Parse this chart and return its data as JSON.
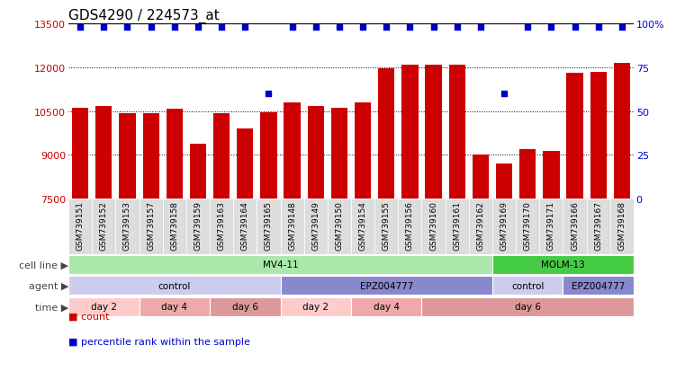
{
  "title": "GDS4290 / 224573_at",
  "samples": [
    "GSM739151",
    "GSM739152",
    "GSM739153",
    "GSM739157",
    "GSM739158",
    "GSM739159",
    "GSM739163",
    "GSM739164",
    "GSM739165",
    "GSM739148",
    "GSM739149",
    "GSM739150",
    "GSM739154",
    "GSM739155",
    "GSM739156",
    "GSM739160",
    "GSM739161",
    "GSM739162",
    "GSM739169",
    "GSM739170",
    "GSM739171",
    "GSM739166",
    "GSM739167",
    "GSM739168"
  ],
  "counts": [
    10620,
    10680,
    10420,
    10430,
    10580,
    9380,
    10440,
    9900,
    10460,
    10780,
    10680,
    10620,
    10780,
    11950,
    12080,
    12080,
    12080,
    9000,
    8700,
    9200,
    9150,
    11820,
    11830,
    12150
  ],
  "percentiles": [
    98,
    98,
    98,
    98,
    98,
    98,
    98,
    98,
    60,
    98,
    98,
    98,
    98,
    98,
    98,
    98,
    98,
    98,
    60,
    98,
    98,
    98,
    98,
    98
  ],
  "bar_color": "#cc0000",
  "percentile_color": "#0000cc",
  "ymin": 7500,
  "ymax": 13500,
  "yticks": [
    7500,
    9000,
    10500,
    12000,
    13500
  ],
  "right_tick_vals": [
    0,
    25,
    50,
    75,
    100
  ],
  "right_tick_labels": [
    "0",
    "25",
    "50",
    "75",
    "100%"
  ],
  "dotted_lines": [
    9000,
    10500,
    12000
  ],
  "cell_line_groups": [
    {
      "label": "MV4-11",
      "start": 0,
      "end": 17,
      "color": "#aae8aa"
    },
    {
      "label": "MOLM-13",
      "start": 18,
      "end": 23,
      "color": "#44cc44"
    }
  ],
  "agent_groups": [
    {
      "label": "control",
      "start": 0,
      "end": 8,
      "color": "#ccccee"
    },
    {
      "label": "EPZ004777",
      "start": 9,
      "end": 17,
      "color": "#8888cc"
    },
    {
      "label": "control",
      "start": 18,
      "end": 20,
      "color": "#ccccee"
    },
    {
      "label": "EPZ004777",
      "start": 21,
      "end": 23,
      "color": "#8888cc"
    }
  ],
  "time_groups": [
    {
      "label": "day 2",
      "start": 0,
      "end": 2,
      "color": "#ffcccc"
    },
    {
      "label": "day 4",
      "start": 3,
      "end": 5,
      "color": "#eeaaaa"
    },
    {
      "label": "day 6",
      "start": 6,
      "end": 8,
      "color": "#dd9999"
    },
    {
      "label": "day 2",
      "start": 9,
      "end": 11,
      "color": "#ffcccc"
    },
    {
      "label": "day 4",
      "start": 12,
      "end": 14,
      "color": "#eeaaaa"
    },
    {
      "label": "day 6",
      "start": 15,
      "end": 23,
      "color": "#dd9999"
    }
  ],
  "legend_count_color": "#cc0000",
  "legend_percentile_color": "#0000cc",
  "background_color": "#ffffff",
  "axis_color_left": "#cc0000",
  "axis_color_right": "#0000cc",
  "title_fontsize": 11,
  "bar_width": 0.7,
  "sample_bg_color": "#dddddd",
  "row_label_color": "#444444"
}
